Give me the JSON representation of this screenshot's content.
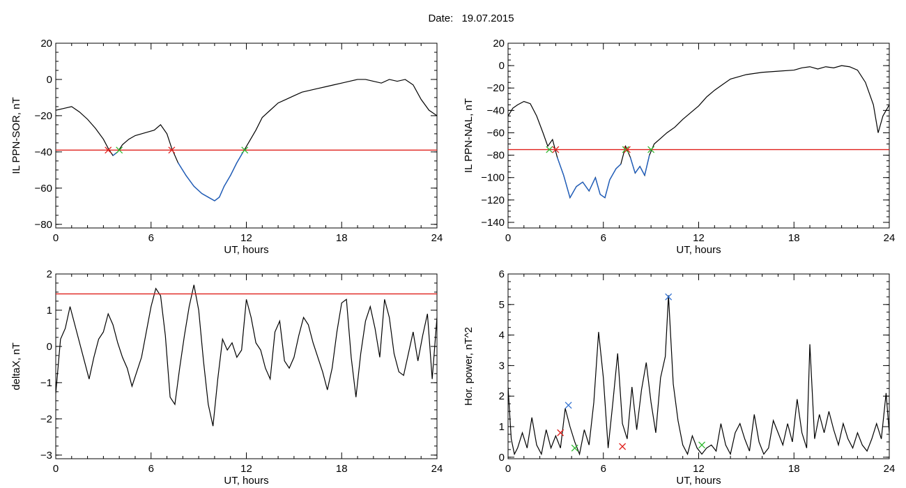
{
  "figure": {
    "title_label": "Date:",
    "date": "19.07.2015"
  },
  "colors": {
    "axis": "#000000",
    "trace": "#000000",
    "below_threshold": "#1f5fbf",
    "threshold_line": "#e0201c",
    "marker_red": "#e0201c",
    "marker_green": "#2db82d",
    "marker_blue": "#2f6fd0"
  },
  "chart_data": [
    {
      "id": "ppn-sor",
      "type": "line",
      "xlabel": "UT, hours",
      "ylabel": "IL PPN-SOR, nT",
      "xlim": [
        0,
        24
      ],
      "ylim": [
        -82,
        20
      ],
      "xticks": [
        0,
        6,
        12,
        18,
        24
      ],
      "yticks": [
        20,
        0,
        -20,
        -40,
        -60,
        -80
      ],
      "threshold": -39,
      "series": [
        {
          "x": [
            0,
            0.5,
            1,
            1.5,
            2,
            2.5,
            3,
            3.3,
            3.6,
            3.9,
            4.2,
            4.6,
            5,
            5.4,
            5.8,
            6.2,
            6.6,
            7,
            7.3,
            7.7,
            8.2,
            8.7,
            9.2,
            9.6,
            10,
            10.3,
            10.6,
            11,
            11.4,
            11.8,
            12.2,
            12.6,
            13,
            13.5,
            14,
            14.5,
            15,
            15.5,
            16,
            16.5,
            17,
            17.5,
            18,
            18.5,
            19,
            19.5,
            20,
            20.5,
            21,
            21.5,
            22,
            22.5,
            23,
            23.5,
            24
          ],
          "y": [
            -17,
            -16,
            -15,
            -18,
            -22,
            -27,
            -33,
            -38,
            -42,
            -40,
            -36,
            -33,
            -31,
            -30,
            -29,
            -28,
            -25,
            -30,
            -38,
            -46,
            -53,
            -59,
            -63,
            -65,
            -67,
            -65,
            -59,
            -53,
            -46,
            -40,
            -34,
            -28,
            -21,
            -17,
            -13,
            -11,
            -9,
            -7,
            -6,
            -5,
            -4,
            -3,
            -2,
            -1,
            0,
            0,
            -1,
            -2,
            0,
            -1,
            0,
            -3,
            -11,
            -17,
            -20
          ]
        }
      ],
      "markers": [
        {
          "x": 3.3,
          "y": -39,
          "color": "red"
        },
        {
          "x": 4.0,
          "y": -39,
          "color": "green"
        },
        {
          "x": 7.3,
          "y": -39,
          "color": "red"
        },
        {
          "x": 11.9,
          "y": -39,
          "color": "green"
        }
      ]
    },
    {
      "id": "ppn-nal",
      "type": "line",
      "xlabel": "UT, hours",
      "ylabel": "IL PPN-NAL, nT",
      "xlim": [
        0,
        24
      ],
      "ylim": [
        -145,
        20
      ],
      "xticks": [
        0,
        6,
        12,
        18,
        24
      ],
      "yticks": [
        20,
        0,
        -20,
        -40,
        -60,
        -80,
        -100,
        -120,
        -140
      ],
      "threshold": -75,
      "series": [
        {
          "x": [
            0,
            0.3,
            0.6,
            1,
            1.4,
            1.8,
            2.2,
            2.5,
            2.8,
            3.1,
            3.5,
            3.9,
            4.3,
            4.7,
            5.1,
            5.5,
            5.8,
            6.1,
            6.4,
            6.8,
            7.1,
            7.4,
            7.7,
            8,
            8.3,
            8.6,
            8.9,
            9.2,
            9.6,
            10,
            10.5,
            11,
            11.5,
            12,
            12.5,
            13,
            13.5,
            14,
            15,
            16,
            17,
            18,
            18.5,
            19,
            19.5,
            20,
            20.5,
            21,
            21.5,
            22,
            22.5,
            23,
            23.3,
            23.6,
            24
          ],
          "y": [
            -45,
            -38,
            -35,
            -32,
            -34,
            -45,
            -60,
            -72,
            -66,
            -82,
            -98,
            -118,
            -108,
            -104,
            -112,
            -100,
            -115,
            -118,
            -102,
            -92,
            -88,
            -72,
            -82,
            -96,
            -90,
            -98,
            -80,
            -70,
            -65,
            -60,
            -55,
            -48,
            -42,
            -36,
            -28,
            -22,
            -17,
            -12,
            -8,
            -6,
            -5,
            -4,
            -2,
            -1,
            -3,
            -1,
            -2,
            0,
            -1,
            -4,
            -15,
            -35,
            -60,
            -45,
            -35
          ]
        }
      ],
      "markers": [
        {
          "x": 2.6,
          "y": -75,
          "color": "green"
        },
        {
          "x": 3.0,
          "y": -75,
          "color": "red"
        },
        {
          "x": 7.4,
          "y": -75,
          "color": "green"
        },
        {
          "x": 7.5,
          "y": -75,
          "color": "red"
        },
        {
          "x": 9.0,
          "y": -75,
          "color": "green"
        }
      ]
    },
    {
      "id": "deltax",
      "type": "line",
      "xlabel": "UT, hours",
      "ylabel": "deltaX, nT",
      "xlim": [
        0,
        24
      ],
      "ylim": [
        -3.1,
        2.0
      ],
      "xticks": [
        0,
        6,
        12,
        18,
        24
      ],
      "yticks": [
        2,
        1,
        0,
        -1,
        -2,
        -3
      ],
      "threshold": 1.45,
      "series": [
        {
          "x": [
            0,
            0.3,
            0.6,
            0.9,
            1.2,
            1.5,
            1.8,
            2.1,
            2.4,
            2.7,
            3,
            3.3,
            3.6,
            3.9,
            4.2,
            4.5,
            4.8,
            5.1,
            5.4,
            5.7,
            6,
            6.3,
            6.6,
            6.9,
            7.2,
            7.5,
            7.8,
            8.1,
            8.4,
            8.7,
            9,
            9.3,
            9.6,
            9.9,
            10.2,
            10.5,
            10.8,
            11.1,
            11.4,
            11.7,
            12,
            12.3,
            12.6,
            12.9,
            13.2,
            13.5,
            13.8,
            14.1,
            14.4,
            14.7,
            15,
            15.3,
            15.6,
            15.9,
            16.2,
            16.5,
            16.8,
            17.1,
            17.4,
            17.7,
            18,
            18.3,
            18.6,
            18.9,
            19.2,
            19.5,
            19.8,
            20.1,
            20.4,
            20.7,
            21,
            21.3,
            21.6,
            21.9,
            22.2,
            22.5,
            22.8,
            23.1,
            23.4,
            23.7,
            24
          ],
          "y": [
            -1.3,
            0.2,
            0.5,
            1.1,
            0.6,
            0.1,
            -0.4,
            -0.9,
            -0.3,
            0.2,
            0.4,
            0.9,
            0.6,
            0.1,
            -0.3,
            -0.6,
            -1.1,
            -0.7,
            -0.3,
            0.4,
            1.1,
            1.6,
            1.4,
            0.3,
            -1.4,
            -1.6,
            -0.6,
            0.3,
            1.1,
            1.7,
            1.0,
            -0.4,
            -1.6,
            -2.2,
            -0.9,
            0.2,
            -0.1,
            0.1,
            -0.3,
            -0.1,
            1.3,
            0.8,
            0.1,
            -0.1,
            -0.6,
            -0.9,
            0.4,
            0.7,
            -0.4,
            -0.6,
            -0.3,
            0.3,
            0.8,
            0.6,
            0.1,
            -0.3,
            -0.7,
            -1.2,
            -0.6,
            0.4,
            1.2,
            1.3,
            -0.3,
            -1.4,
            -0.2,
            0.7,
            1.1,
            0.5,
            -0.3,
            1.3,
            0.8,
            -0.2,
            -0.7,
            -0.8,
            -0.2,
            0.4,
            -0.4,
            0.3,
            0.9,
            -0.9,
            0.8
          ]
        }
      ]
    },
    {
      "id": "hor-power",
      "type": "line",
      "xlabel": "UT, hours",
      "ylabel": "Hor. power, nT^2",
      "xlim": [
        0,
        24
      ],
      "ylim": [
        -0.05,
        6
      ],
      "xticks": [
        0,
        6,
        12,
        18,
        24
      ],
      "yticks": [
        6,
        5,
        4,
        3,
        2,
        1,
        0
      ],
      "series": [
        {
          "x": [
            0,
            0.2,
            0.4,
            0.6,
            0.9,
            1.2,
            1.5,
            1.8,
            2.1,
            2.4,
            2.7,
            3,
            3.3,
            3.6,
            3.9,
            4.2,
            4.5,
            4.8,
            5.1,
            5.4,
            5.7,
            6,
            6.3,
            6.6,
            6.9,
            7.2,
            7.5,
            7.8,
            8.1,
            8.4,
            8.7,
            9,
            9.3,
            9.6,
            9.9,
            10.1,
            10.4,
            10.7,
            11,
            11.3,
            11.6,
            11.9,
            12.2,
            12.5,
            12.8,
            13.1,
            13.4,
            13.7,
            14,
            14.3,
            14.6,
            14.9,
            15.2,
            15.5,
            15.8,
            16.1,
            16.4,
            16.7,
            17,
            17.3,
            17.6,
            17.9,
            18.2,
            18.5,
            18.8,
            19,
            19.3,
            19.6,
            19.9,
            20.2,
            20.5,
            20.8,
            21.1,
            21.4,
            21.7,
            22,
            22.3,
            22.6,
            22.9,
            23.2,
            23.5,
            23.8,
            24
          ],
          "y": [
            2.3,
            0.6,
            0.1,
            0.3,
            0.8,
            0.3,
            1.3,
            0.4,
            0.1,
            0.9,
            0.3,
            0.7,
            0.3,
            1.6,
            1.0,
            0.5,
            0.1,
            0.9,
            0.4,
            1.8,
            4.1,
            2.6,
            0.3,
            1.8,
            3.4,
            1.1,
            0.6,
            2.3,
            0.9,
            2.2,
            3.1,
            1.8,
            0.8,
            2.6,
            3.3,
            5.3,
            2.4,
            1.2,
            0.4,
            0.1,
            0.7,
            0.3,
            0.1,
            0.3,
            0.4,
            0.2,
            1.1,
            0.4,
            0.1,
            0.8,
            1.1,
            0.6,
            0.2,
            1.4,
            0.5,
            0.1,
            0.3,
            1.2,
            0.8,
            0.4,
            1.1,
            0.5,
            1.9,
            0.8,
            0.3,
            3.7,
            0.6,
            1.4,
            0.8,
            1.5,
            0.9,
            0.4,
            1.1,
            0.6,
            0.3,
            0.8,
            0.4,
            0.2,
            0.6,
            1.1,
            0.6,
            2.1,
            0.8
          ]
        }
      ],
      "markers": [
        {
          "x": 3.3,
          "y": 0.8,
          "color": "red"
        },
        {
          "x": 3.8,
          "y": 1.7,
          "color": "blue"
        },
        {
          "x": 4.2,
          "y": 0.3,
          "color": "green"
        },
        {
          "x": 7.2,
          "y": 0.35,
          "color": "red"
        },
        {
          "x": 10.1,
          "y": 5.25,
          "color": "blue"
        },
        {
          "x": 12.2,
          "y": 0.4,
          "color": "green"
        }
      ]
    }
  ]
}
